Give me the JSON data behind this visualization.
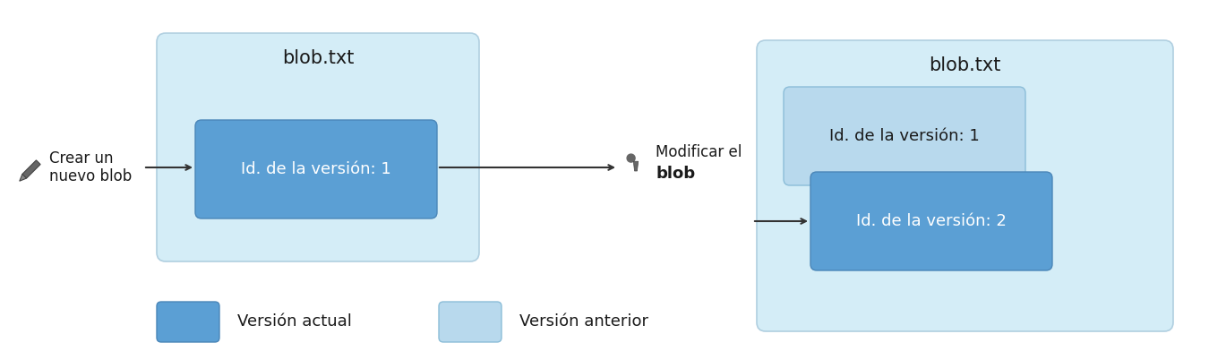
{
  "bg_color": "#ffffff",
  "text_color": "#1a1a1a",
  "title_text": "blob.txt",
  "version1_text": "Id. de la versión: 1",
  "version2_text": "Id. de la versión: 2",
  "create_line1": "Crear un",
  "create_line2": "nuevo blob",
  "modify_line1": "Modificar el",
  "modify_line2": "blob",
  "legend_current": "Versión actual",
  "legend_previous": "Versión anterior",
  "color_outer": "#d4edf7",
  "color_outer_edge": "#b0cfe0",
  "color_current": "#5b9fd4",
  "color_current_edge": "#4a86b8",
  "color_previous": "#b8d9ed",
  "color_previous_edge": "#8bbdd8"
}
